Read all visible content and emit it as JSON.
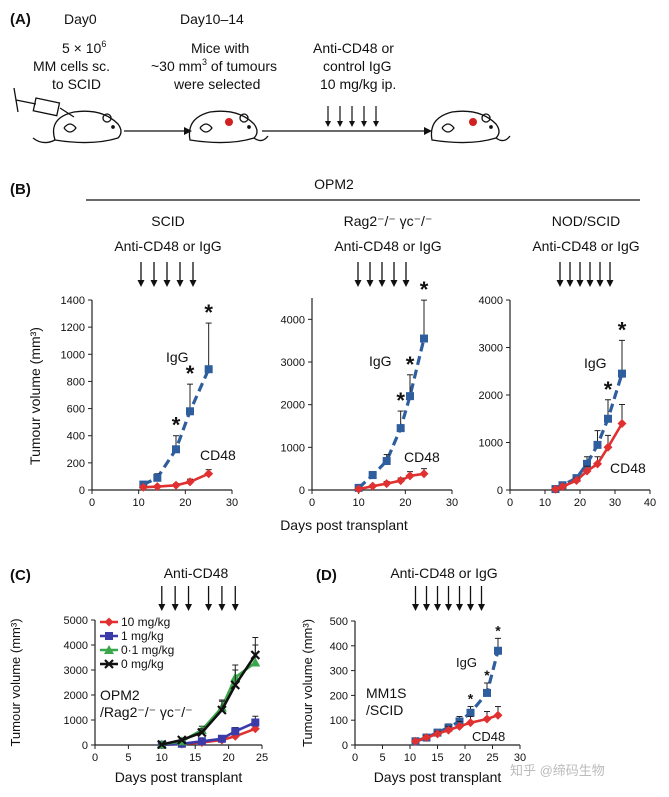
{
  "panel_a": {
    "label": "(A)",
    "day0": "Day0",
    "day10": "Day10–14",
    "cells_line1": "5 × 10",
    "cells_exp": "6",
    "cells_line2": "MM cells sc.",
    "cells_line3": "to SCID",
    "mice_line1": "Mice with",
    "mice_line2a": "~30 mm",
    "mice_exp": "3",
    "mice_line2b": " of tumours",
    "mice_line3": "were selected",
    "treat_line1": "Anti-CD48 or",
    "treat_line2": "control IgG",
    "treat_line3": "10 mg/kg ip."
  },
  "panel_b": {
    "label": "(B)",
    "group_title": "OPM2",
    "shared_xlabel": "Days post transplant",
    "shared_ylabel": "Tumour volume (mm³)"
  },
  "panel_c": {
    "label": "(C)"
  },
  "panel_d": {
    "label": "(D)"
  },
  "watermark": "知乎 @缔码生物",
  "colors": {
    "igg": "#2e5e9e",
    "cd48": "#e03030",
    "dose_1": "#3a3aa8",
    "dose_01": "#3aa84a",
    "dose_0": "#111111"
  },
  "chart_data": [
    {
      "id": "b1",
      "type": "line",
      "title": "SCID",
      "treatment": "Anti-CD48 or IgG",
      "xlim": [
        0,
        30
      ],
      "xticks": [
        0,
        10,
        20,
        30
      ],
      "ylim": [
        0,
        1400
      ],
      "yticks": [
        0,
        200,
        400,
        600,
        800,
        1000,
        1200,
        1400
      ],
      "ylabel": "Tumour volume (mm³)",
      "treatment_days": [
        10,
        12.5,
        15,
        17.5,
        20
      ],
      "series": [
        {
          "name": "IgG",
          "label": "IgG",
          "color": "#2e5e9e",
          "marker": "square",
          "dashed": true,
          "x": [
            11,
            14,
            18,
            21,
            25
          ],
          "y": [
            40,
            90,
            300,
            580,
            890
          ],
          "err": [
            20,
            30,
            100,
            200,
            340
          ],
          "sig": [
            "",
            "",
            "*",
            "*",
            "*"
          ]
        },
        {
          "name": "CD48",
          "label": "CD48",
          "color": "#e03030",
          "marker": "diamond",
          "dashed": false,
          "x": [
            11,
            14,
            18,
            21,
            25
          ],
          "y": [
            20,
            25,
            35,
            60,
            120
          ],
          "err": [
            5,
            8,
            12,
            20,
            30
          ],
          "sig": [
            "",
            "",
            "",
            "",
            ""
          ]
        }
      ]
    },
    {
      "id": "b2",
      "type": "line",
      "title": "Rag2⁻/⁻ γc⁻/⁻",
      "treatment": "Anti-CD48 or IgG",
      "xlim": [
        0,
        30
      ],
      "xticks": [
        0,
        10,
        20,
        30
      ],
      "ylim": [
        0,
        4500
      ],
      "yticks": [
        0,
        1000,
        2000,
        3000,
        4000
      ],
      "ylabel": "",
      "treatment_days": [
        10,
        12.5,
        15,
        17.5,
        20
      ],
      "series": [
        {
          "name": "IgG",
          "label": "IgG",
          "color": "#2e5e9e",
          "marker": "square",
          "dashed": true,
          "x": [
            10,
            13,
            16,
            19,
            21,
            24
          ],
          "y": [
            50,
            350,
            680,
            1450,
            2200,
            3550
          ],
          "err": [
            30,
            80,
            150,
            400,
            500,
            900
          ],
          "sig": [
            "",
            "",
            "",
            "*",
            "*",
            "*"
          ]
        },
        {
          "name": "CD48",
          "label": "CD48",
          "color": "#e03030",
          "marker": "diamond",
          "dashed": false,
          "x": [
            10,
            13,
            16,
            19,
            21,
            24
          ],
          "y": [
            20,
            90,
            150,
            220,
            330,
            380
          ],
          "err": [
            10,
            30,
            50,
            60,
            100,
            120
          ],
          "sig": [
            "",
            "",
            "",
            "",
            "",
            ""
          ]
        }
      ]
    },
    {
      "id": "b3",
      "type": "line",
      "title": "NOD/SCID",
      "treatment": "Anti-CD48 or IgG",
      "xlim": [
        0,
        40
      ],
      "xticks": [
        0,
        10,
        20,
        30,
        40
      ],
      "ylim": [
        0,
        4000
      ],
      "yticks": [
        0,
        1000,
        2000,
        3000,
        4000
      ],
      "ylabel": "",
      "treatment_days": [
        12,
        15,
        18,
        21,
        24,
        27
      ],
      "series": [
        {
          "name": "IgG",
          "label": "IgG",
          "color": "#2e5e9e",
          "marker": "square",
          "dashed": true,
          "x": [
            13,
            15,
            19,
            22,
            25,
            28,
            32
          ],
          "y": [
            20,
            100,
            250,
            550,
            950,
            1500,
            2450
          ],
          "err": [
            10,
            20,
            60,
            150,
            300,
            400,
            700
          ],
          "sig": [
            "",
            "",
            "",
            "",
            "",
            "*",
            "*"
          ]
        },
        {
          "name": "CD48",
          "label": "CD48",
          "color": "#e03030",
          "marker": "diamond",
          "dashed": false,
          "x": [
            13,
            15,
            19,
            22,
            25,
            28,
            32
          ],
          "y": [
            15,
            70,
            200,
            400,
            550,
            900,
            1400
          ],
          "err": [
            8,
            20,
            50,
            100,
            150,
            250,
            400
          ],
          "sig": [
            "",
            "",
            "",
            "",
            "",
            "",
            ""
          ]
        }
      ]
    },
    {
      "id": "c",
      "type": "line",
      "title": "",
      "treatment": "Anti-CD48",
      "xlim": [
        0,
        25
      ],
      "xticks": [
        0,
        5,
        10,
        15,
        20,
        25
      ],
      "ylim": [
        0,
        5000
      ],
      "yticks": [
        0,
        1000,
        2000,
        3000,
        4000,
        5000
      ],
      "xlabel": "Days post transplant",
      "ylabel": "Tumour volume (mm³)",
      "annotation_line1": "OPM2",
      "annotation_line2": "/Rag2⁻/⁻ γc⁻/⁻",
      "treatment_days": [
        10,
        12,
        14,
        17,
        19,
        21
      ],
      "series": [
        {
          "name": "10 mg/kg",
          "label": "10 mg/kg",
          "color": "#e03030",
          "marker": "diamond",
          "dashed": false,
          "x": [
            10,
            13,
            16,
            19,
            21,
            24
          ],
          "y": [
            10,
            40,
            100,
            200,
            350,
            650
          ],
          "err": [
            5,
            15,
            30,
            50,
            80,
            100
          ]
        },
        {
          "name": "1 mg/kg",
          "label": "1 mg/kg",
          "color": "#3a3aa8",
          "marker": "square",
          "dashed": false,
          "x": [
            10,
            13,
            16,
            19,
            21,
            24
          ],
          "y": [
            10,
            50,
            150,
            250,
            550,
            900
          ],
          "err": [
            5,
            15,
            40,
            60,
            150,
            250
          ]
        },
        {
          "name": "0·1 mg/kg",
          "label": "0·1 mg/kg",
          "color": "#3aa84a",
          "marker": "triangle",
          "dashed": false,
          "x": [
            10,
            13,
            16,
            19,
            21,
            24
          ],
          "y": [
            20,
            150,
            600,
            1500,
            2700,
            3300
          ],
          "err": [
            10,
            50,
            150,
            300,
            500,
            700
          ]
        },
        {
          "name": "0 mg/kg",
          "label": "0 mg/kg",
          "color": "#111111",
          "marker": "cross",
          "dashed": false,
          "x": [
            10,
            13,
            16,
            19,
            21,
            24
          ],
          "y": [
            20,
            200,
            500,
            1400,
            2400,
            3600
          ],
          "err": [
            10,
            60,
            150,
            350,
            600,
            700
          ]
        }
      ]
    },
    {
      "id": "d",
      "type": "line",
      "title": "",
      "treatment": "Anti-CD48 or IgG",
      "xlim": [
        0,
        30
      ],
      "xticks": [
        0,
        5,
        10,
        15,
        20,
        25,
        30
      ],
      "ylim": [
        0,
        500
      ],
      "yticks": [
        0,
        100,
        200,
        300,
        400,
        500
      ],
      "xlabel": "Days post transplant",
      "ylabel": "Tumour volume (mm³)",
      "annotation_line1": "MM1S",
      "annotation_line2": "/SCID",
      "treatment_days": [
        11,
        13,
        15,
        17,
        19,
        21,
        23
      ],
      "series": [
        {
          "name": "IgG",
          "label": "IgG",
          "color": "#2e5e9e",
          "marker": "square",
          "dashed": true,
          "x": [
            11,
            13,
            15,
            17,
            19,
            21,
            24,
            26
          ],
          "y": [
            15,
            30,
            50,
            70,
            95,
            130,
            210,
            380
          ],
          "err": [
            5,
            8,
            10,
            15,
            20,
            25,
            40,
            50
          ],
          "sig": [
            "",
            "",
            "",
            "",
            "",
            "*",
            "*",
            "*"
          ]
        },
        {
          "name": "CD48",
          "label": "CD48",
          "color": "#e03030",
          "marker": "diamond",
          "dashed": false,
          "x": [
            11,
            13,
            15,
            17,
            19,
            21,
            24,
            26
          ],
          "y": [
            15,
            30,
            45,
            60,
            75,
            90,
            105,
            120
          ],
          "err": [
            5,
            8,
            10,
            15,
            20,
            25,
            30,
            35
          ],
          "sig": [
            "",
            "",
            "",
            "",
            "",
            "",
            "",
            ""
          ]
        }
      ]
    }
  ]
}
